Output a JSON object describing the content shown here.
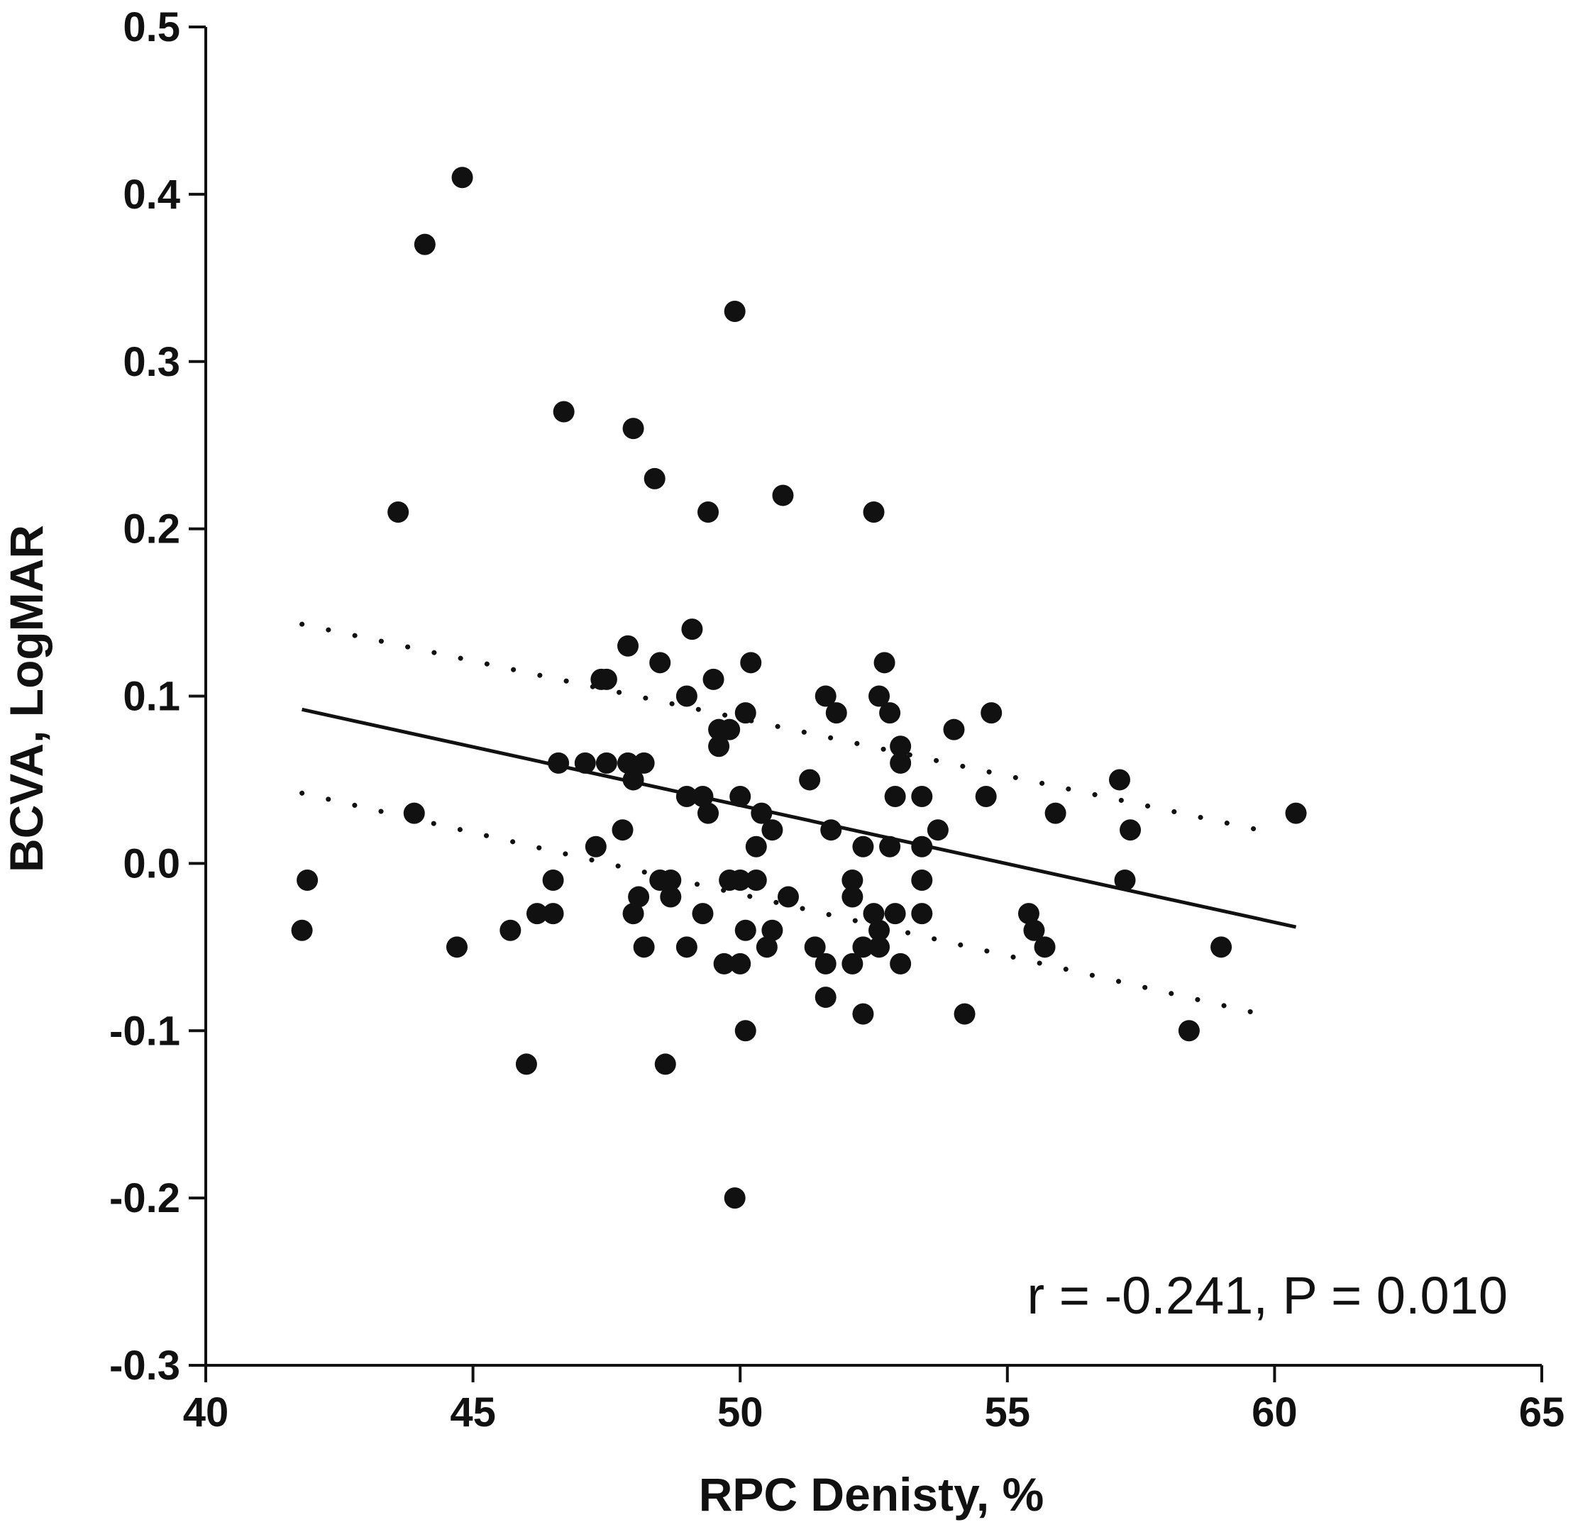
{
  "chart_data": {
    "type": "scatter",
    "xlabel": "RPC Denisty, %",
    "ylabel": "BCVA, LogMAR",
    "xlim": [
      40,
      65
    ],
    "ylim": [
      -0.3,
      0.5
    ],
    "x_ticks": [
      40,
      45,
      50,
      55,
      60,
      65
    ],
    "x_tick_labels": [
      "40",
      "45",
      "50",
      "55",
      "60",
      "65"
    ],
    "y_ticks": [
      -0.3,
      -0.2,
      -0.1,
      0.0,
      0.1,
      0.2,
      0.3,
      0.4,
      0.5
    ],
    "y_tick_labels": [
      "-0.3",
      "-0.2",
      "-0.1",
      "0.0",
      "0.1",
      "0.2",
      "0.3",
      "0.4",
      "0.5"
    ],
    "annotation": "r = -0.241, P = 0.010",
    "grid": false,
    "colors": {
      "points": "#111111",
      "lines": "#111111",
      "axes": "#111111"
    },
    "points": [
      [
        44.8,
        0.41
      ],
      [
        44.1,
        0.37
      ],
      [
        49.9,
        0.33
      ],
      [
        46.7,
        0.27
      ],
      [
        48.0,
        0.26
      ],
      [
        48.4,
        0.23
      ],
      [
        43.6,
        0.21
      ],
      [
        49.4,
        0.21
      ],
      [
        50.8,
        0.22
      ],
      [
        52.5,
        0.21
      ],
      [
        49.1,
        0.14
      ],
      [
        47.9,
        0.13
      ],
      [
        48.5,
        0.12
      ],
      [
        50.2,
        0.12
      ],
      [
        52.7,
        0.12
      ],
      [
        47.4,
        0.11
      ],
      [
        47.5,
        0.11
      ],
      [
        49.5,
        0.11
      ],
      [
        49.0,
        0.1
      ],
      [
        51.6,
        0.1
      ],
      [
        52.6,
        0.1
      ],
      [
        50.1,
        0.09
      ],
      [
        51.8,
        0.09
      ],
      [
        52.8,
        0.09
      ],
      [
        54.7,
        0.09
      ],
      [
        49.6,
        0.08
      ],
      [
        49.8,
        0.08
      ],
      [
        54.0,
        0.08
      ],
      [
        49.6,
        0.07
      ],
      [
        53.0,
        0.07
      ],
      [
        46.6,
        0.06
      ],
      [
        47.1,
        0.06
      ],
      [
        47.5,
        0.06
      ],
      [
        47.9,
        0.06
      ],
      [
        48.2,
        0.06
      ],
      [
        53.0,
        0.06
      ],
      [
        48.0,
        0.05
      ],
      [
        51.3,
        0.05
      ],
      [
        57.1,
        0.05
      ],
      [
        49.0,
        0.04
      ],
      [
        49.3,
        0.04
      ],
      [
        50.0,
        0.04
      ],
      [
        52.9,
        0.04
      ],
      [
        53.4,
        0.04
      ],
      [
        54.6,
        0.04
      ],
      [
        43.9,
        0.03
      ],
      [
        49.4,
        0.03
      ],
      [
        50.4,
        0.03
      ],
      [
        55.9,
        0.03
      ],
      [
        60.4,
        0.03
      ],
      [
        47.8,
        0.02
      ],
      [
        50.6,
        0.02
      ],
      [
        51.7,
        0.02
      ],
      [
        53.7,
        0.02
      ],
      [
        57.3,
        0.02
      ],
      [
        47.3,
        0.01
      ],
      [
        50.3,
        0.01
      ],
      [
        52.3,
        0.01
      ],
      [
        52.8,
        0.01
      ],
      [
        53.4,
        0.01
      ],
      [
        41.9,
        -0.01
      ],
      [
        46.5,
        -0.01
      ],
      [
        48.5,
        -0.01
      ],
      [
        48.7,
        -0.01
      ],
      [
        49.8,
        -0.01
      ],
      [
        50.0,
        -0.01
      ],
      [
        50.3,
        -0.01
      ],
      [
        52.1,
        -0.01
      ],
      [
        53.4,
        -0.01
      ],
      [
        57.2,
        -0.01
      ],
      [
        48.1,
        -0.02
      ],
      [
        48.7,
        -0.02
      ],
      [
        50.9,
        -0.02
      ],
      [
        52.1,
        -0.02
      ],
      [
        46.2,
        -0.03
      ],
      [
        46.5,
        -0.03
      ],
      [
        48.0,
        -0.03
      ],
      [
        49.3,
        -0.03
      ],
      [
        52.5,
        -0.03
      ],
      [
        52.9,
        -0.03
      ],
      [
        53.4,
        -0.03
      ],
      [
        55.4,
        -0.03
      ],
      [
        41.8,
        -0.04
      ],
      [
        45.7,
        -0.04
      ],
      [
        50.1,
        -0.04
      ],
      [
        50.6,
        -0.04
      ],
      [
        52.6,
        -0.04
      ],
      [
        55.5,
        -0.04
      ],
      [
        44.7,
        -0.05
      ],
      [
        48.2,
        -0.05
      ],
      [
        49.0,
        -0.05
      ],
      [
        50.5,
        -0.05
      ],
      [
        51.4,
        -0.05
      ],
      [
        52.3,
        -0.05
      ],
      [
        52.6,
        -0.05
      ],
      [
        55.7,
        -0.05
      ],
      [
        59.0,
        -0.05
      ],
      [
        49.7,
        -0.06
      ],
      [
        50.0,
        -0.06
      ],
      [
        51.6,
        -0.06
      ],
      [
        52.1,
        -0.06
      ],
      [
        53.0,
        -0.06
      ],
      [
        51.6,
        -0.08
      ],
      [
        52.3,
        -0.09
      ],
      [
        54.2,
        -0.09
      ],
      [
        50.1,
        -0.1
      ],
      [
        58.4,
        -0.1
      ],
      [
        46.0,
        -0.12
      ],
      [
        48.6,
        -0.12
      ],
      [
        49.9,
        -0.2
      ]
    ],
    "regression_line": {
      "x": [
        41.8,
        60.4
      ],
      "y": [
        0.092,
        -0.038
      ]
    },
    "ci_upper": {
      "x": [
        41.8,
        60.0
      ],
      "y": [
        0.143,
        0.018
      ]
    },
    "ci_lower": {
      "x": [
        41.8,
        60.0
      ],
      "y": [
        0.042,
        -0.092
      ]
    }
  }
}
